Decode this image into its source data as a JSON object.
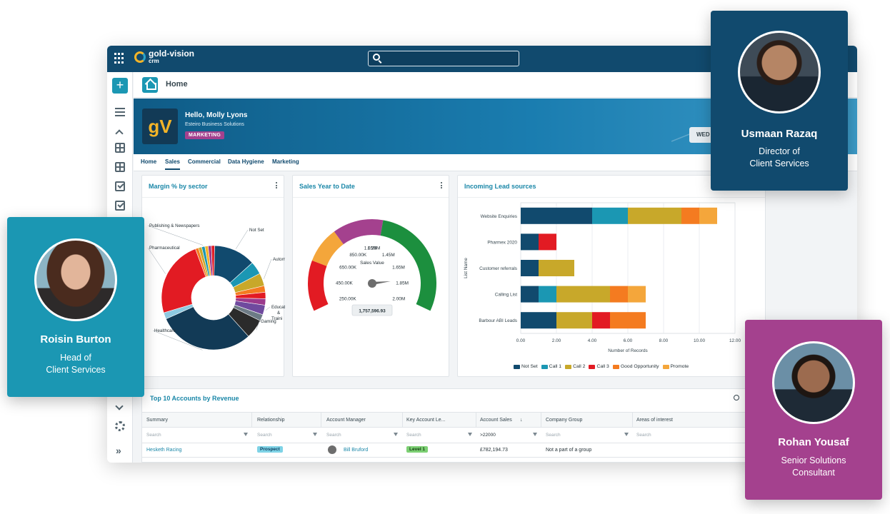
{
  "app": {
    "logo_text": "gold-vision",
    "logo_sub": "crm"
  },
  "header": {
    "title": "Home"
  },
  "banner": {
    "greeting": "Hello, Molly Lyons",
    "company": "Esteiro Business Solutions",
    "role_badge": "MARKETING",
    "logo_letters": "gV",
    "button_label": "WED"
  },
  "tabs": [
    {
      "label": "Home",
      "active": false
    },
    {
      "label": "Sales",
      "active": true
    },
    {
      "label": "Commercial",
      "active": false
    },
    {
      "label": "Data Hygiene",
      "active": false
    },
    {
      "label": "Marketing",
      "active": false
    }
  ],
  "cards": {
    "margin": {
      "title": "Margin % by sector"
    },
    "sales_ytd": {
      "title": "Sales Year to Date"
    },
    "leads": {
      "title": "Incoming Lead sources"
    }
  },
  "chart_data": [
    {
      "type": "pie",
      "title": "Margin % by sector",
      "labels": [
        "Not Set",
        "Autom",
        "Educat & Traini",
        "Gaming",
        "Healthcare",
        "Pharmaceutical",
        "Publishing & Newspapers"
      ],
      "slices": [
        {
          "label": "Not Set",
          "value": 13,
          "color": "#114a6e"
        },
        {
          "label": "",
          "value": 4,
          "color": "#1b97b3"
        },
        {
          "label": "Autom",
          "value": 4,
          "color": "#c8a82a"
        },
        {
          "label": "",
          "value": 2,
          "color": "#f47b20"
        },
        {
          "label": "",
          "value": 2,
          "color": "#e21b23"
        },
        {
          "label": "",
          "value": 2,
          "color": "#9b3a8c"
        },
        {
          "label": "Educat & Traini",
          "value": 3,
          "color": "#6f4a9e"
        },
        {
          "label": "",
          "value": 2,
          "color": "#6d7b86"
        },
        {
          "label": "Gaming",
          "value": 6,
          "color": "#2b2b2b"
        },
        {
          "label": "Healthcare",
          "value": 30,
          "color": "#123a56"
        },
        {
          "label": "",
          "value": 2,
          "color": "#8ec9e0"
        },
        {
          "label": "Pharmaceutical",
          "value": 24,
          "color": "#e21b23"
        },
        {
          "label": "",
          "value": 1,
          "color": "#f47b20"
        },
        {
          "label": "",
          "value": 1,
          "color": "#c8a82a"
        },
        {
          "label": "Publishing & Newspapers",
          "value": 1,
          "color": "#1b97b3"
        },
        {
          "label": "",
          "value": 1,
          "color": "#f3b428"
        },
        {
          "label": "",
          "value": 1,
          "color": "#9b3a8c"
        },
        {
          "label": "",
          "value": 1,
          "color": "#e21b23"
        }
      ]
    },
    {
      "type": "gauge",
      "title": "Sales Year to Date",
      "series_label": "Sales Value",
      "ticks": [
        "250.00K",
        "450.00K",
        "650.00K",
        "850.00K",
        "1.05M",
        "1.25M",
        "1.45M",
        "1.65M",
        "1.85M",
        "2.00M"
      ],
      "min": 250000,
      "max": 2000000,
      "value": 1757596.93,
      "value_label": "1,757,596.93",
      "bands": [
        {
          "from": 250000,
          "to": 600000,
          "color": "#e21b23"
        },
        {
          "from": 600000,
          "to": 850000,
          "color": "#f4a63b"
        },
        {
          "from": 850000,
          "to": 1200000,
          "color": "#a4418e"
        },
        {
          "from": 1200000,
          "to": 2000000,
          "color": "#1c8f3e"
        }
      ]
    },
    {
      "type": "bar",
      "orientation": "horizontal",
      "stacked": true,
      "title": "Incoming Lead sources",
      "xlabel": "Number of Records",
      "ylabel": "List Name",
      "xlim": [
        0,
        12
      ],
      "x_ticks": [
        "0.00",
        "2.00",
        "4.00",
        "6.00",
        "8.00",
        "10.00",
        "12.00"
      ],
      "categories": [
        "Website Enquiries",
        "Pharmex 2020",
        "Customer referrals",
        "Calling List",
        "Barbour ABI Leads"
      ],
      "series": [
        {
          "name": "Not Set",
          "color": "#114a6e",
          "values": [
            4,
            1,
            1,
            1,
            2
          ]
        },
        {
          "name": "Call 1",
          "color": "#1b97b3",
          "values": [
            2,
            0,
            0,
            1,
            0
          ]
        },
        {
          "name": "Call 2",
          "color": "#c8a82a",
          "values": [
            3,
            0,
            2,
            3,
            2
          ]
        },
        {
          "name": "Call 3",
          "color": "#e21b23",
          "values": [
            0,
            1,
            0,
            0,
            1
          ]
        },
        {
          "name": "Good Opportunity",
          "color": "#f47b20",
          "values": [
            1,
            0,
            0,
            1,
            2
          ]
        },
        {
          "name": "Promote",
          "color": "#f4a63b",
          "values": [
            1,
            0,
            0,
            1,
            0
          ]
        }
      ]
    }
  ],
  "table": {
    "title": "Top 10 Accounts by Revenue",
    "columns": [
      "Summary",
      "Relationship",
      "Account Manager",
      "Key Account Le...",
      "Account Sales",
      "Company Group",
      "Areas of interest"
    ],
    "filters": [
      "Search",
      "Search",
      "Search",
      "Search",
      ">22000",
      "Search",
      "Search"
    ],
    "rows": [
      {
        "summary": "Hesketh Racing",
        "relationship": "Prospect",
        "account_manager": "Bill Bruford",
        "key_account_level": "Level 1",
        "account_sales": "£782,194.73",
        "company_group": "Not a part of a group",
        "areas": ""
      }
    ]
  },
  "people": [
    {
      "name": "Usmaan Razaq",
      "role_line1": "Director of",
      "role_line2": "Client Services",
      "color": "#114a6e"
    },
    {
      "name": "Roisin Burton",
      "role_line1": "Head of",
      "role_line2": "Client Services",
      "color": "#1b97b3"
    },
    {
      "name": "Rohan Yousaf",
      "role_line1": "Senior Solutions",
      "role_line2": "Consultant",
      "color": "#a4418e"
    }
  ]
}
